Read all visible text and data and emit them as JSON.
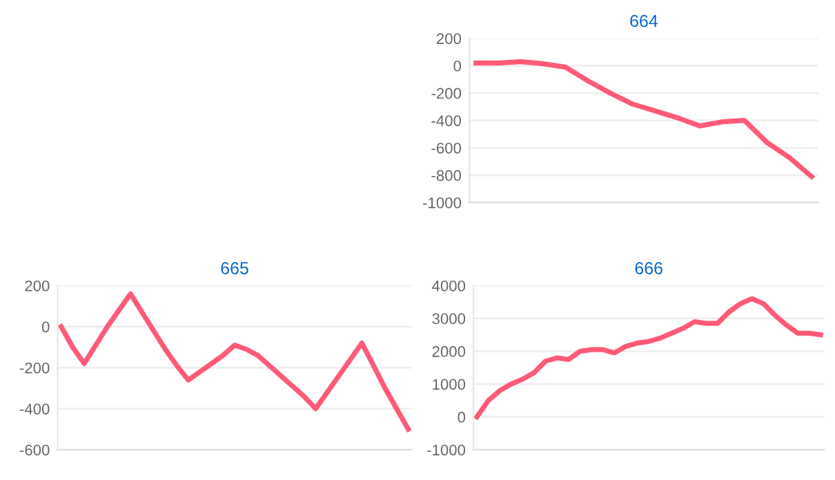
{
  "chart_data": [
    {
      "type": "line",
      "title": "664",
      "categories": [
        null,
        null,
        null,
        null,
        null,
        null,
        null,
        null,
        null,
        null,
        null,
        null,
        null,
        null,
        null,
        null
      ],
      "series": [
        {
          "color": "#ff5a78",
          "values": [
            20,
            20,
            30,
            15,
            -10,
            -110,
            -200,
            -280,
            -330,
            -380,
            -440,
            -410,
            -400,
            -560,
            -670,
            -810
          ]
        }
      ],
      "ylim": [
        -1000,
        200
      ],
      "yticks": [
        -1000,
        -800,
        -600,
        -400,
        -200,
        0,
        200
      ],
      "grid": "y",
      "tick_labels": "y",
      "marker": "none",
      "line_style": "solid"
    },
    {
      "type": "line",
      "title": "665",
      "categories": [
        null,
        null,
        null,
        null,
        null,
        null,
        null,
        null,
        null,
        null,
        null,
        null,
        null,
        null,
        null,
        null,
        null,
        null,
        null,
        null,
        null,
        null,
        null,
        null,
        null,
        null,
        null,
        null,
        null,
        null,
        null
      ],
      "series": [
        {
          "color": "#ff5a78",
          "values": [
            0,
            -100,
            -180,
            -90,
            0,
            80,
            160,
            70,
            -20,
            -110,
            -190,
            -260,
            -220,
            -180,
            -140,
            -90,
            -110,
            -140,
            -190,
            -240,
            -290,
            -340,
            -400,
            -320,
            -240,
            -160,
            -80,
            -190,
            -300,
            -400,
            -500
          ]
        }
      ],
      "ylim": [
        -600,
        200
      ],
      "yticks": [
        -600,
        -400,
        -200,
        0,
        200
      ],
      "grid": "y",
      "tick_labels": "y",
      "marker": "none",
      "line_style": "solid"
    },
    {
      "type": "line",
      "title": "666",
      "categories": [
        null,
        null,
        null,
        null,
        null,
        null,
        null,
        null,
        null,
        null,
        null,
        null,
        null,
        null,
        null,
        null,
        null,
        null,
        null,
        null,
        null,
        null,
        null,
        null,
        null,
        null,
        null,
        null,
        null,
        null,
        null
      ],
      "series": [
        {
          "color": "#ff5a78",
          "values": [
            0,
            500,
            800,
            1000,
            1150,
            1350,
            1700,
            1800,
            1750,
            2000,
            2050,
            2050,
            1950,
            2150,
            2250,
            2300,
            2400,
            2550,
            2700,
            2900,
            2850,
            2850,
            3200,
            3450,
            3600,
            3450,
            3100,
            2800,
            2550,
            2550,
            2500
          ]
        }
      ],
      "ylim": [
        -1000,
        4000
      ],
      "yticks": [
        -1000,
        0,
        1000,
        2000,
        3000,
        4000
      ],
      "grid": "y",
      "tick_labels": "y",
      "marker": "none",
      "line_style": "solid"
    }
  ]
}
